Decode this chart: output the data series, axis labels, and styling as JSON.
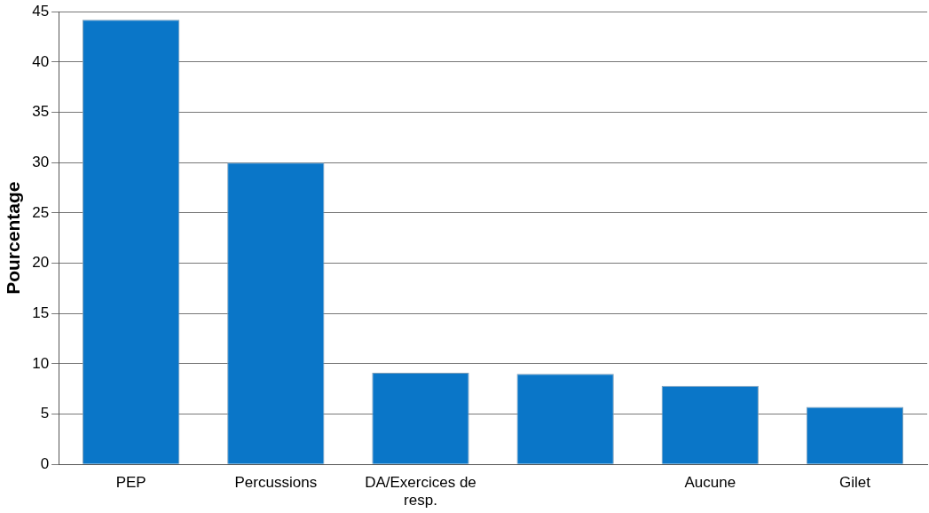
{
  "chart_data": {
    "type": "bar",
    "ylabel": "Pourcentage",
    "categories": [
      "PEP",
      "Percussions",
      "DA/Exercices de resp.",
      null,
      "Aucune",
      "Gilet"
    ],
    "values": [
      44.2,
      30,
      9.1,
      9,
      7.8,
      5.7
    ],
    "color": "#0a76c8",
    "ylim": [
      0,
      45
    ],
    "yticks": [
      0,
      5,
      10,
      15,
      20,
      25,
      30,
      35,
      40,
      45
    ],
    "grid": "y",
    "legend": false
  }
}
